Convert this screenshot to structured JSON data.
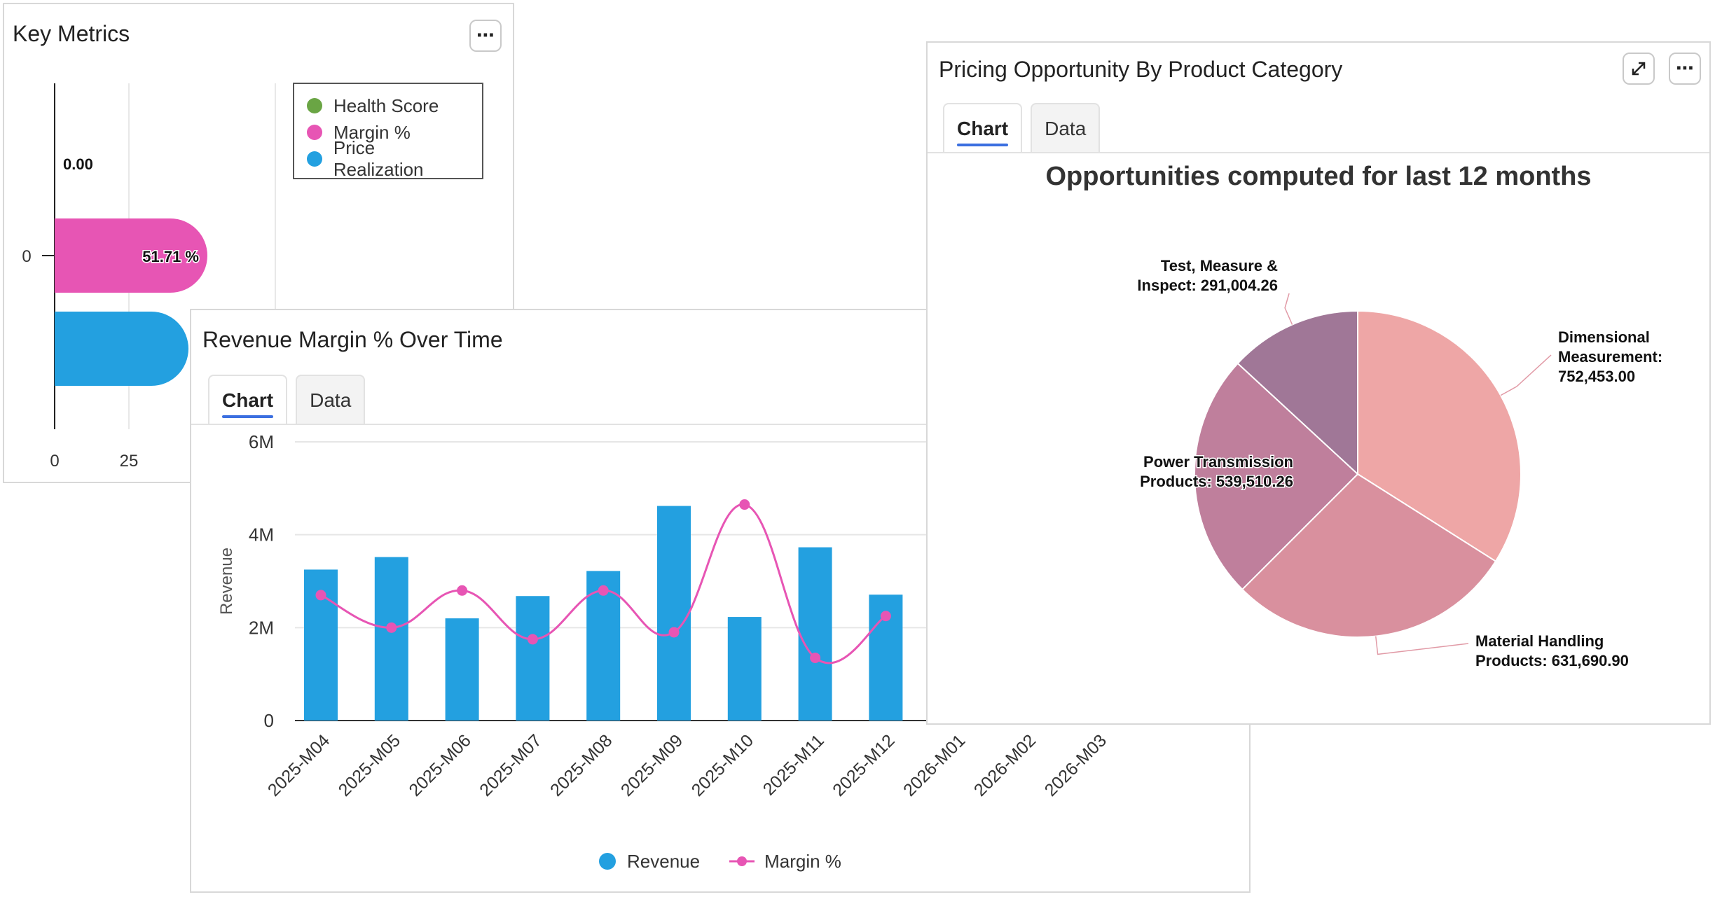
{
  "key_metrics": {
    "title": "Key Metrics",
    "menu_icon": "more-icon",
    "legend": [
      {
        "label": "Health Score",
        "color": "#6aa544"
      },
      {
        "label": "Margin %",
        "color": "#e755b4"
      },
      {
        "label": "Price Realization",
        "color": "#23a0e0"
      }
    ],
    "y_tick": "0",
    "x_ticks": [
      "0",
      "25"
    ],
    "value_labels": {
      "health": "0.00",
      "margin": "51.71 %"
    }
  },
  "revenue_panel": {
    "title": "Revenue Margin % Over Time",
    "tabs": [
      "Chart",
      "Data"
    ],
    "active_tab": "Chart",
    "legend": [
      {
        "label": "Revenue",
        "color": "#23a0e0"
      },
      {
        "label": "Margin %",
        "color": "#e755b4"
      }
    ]
  },
  "pricing_panel": {
    "title": "Pricing Opportunity By Product Category",
    "tabs": [
      "Chart",
      "Data"
    ],
    "active_tab": "Chart",
    "expand_icon": "expand-icon",
    "menu_icon": "more-icon",
    "chart_title": "Opportunities computed for last 12 months"
  },
  "chart_data": [
    {
      "type": "bar",
      "title": "Key Metrics",
      "orientation": "horizontal",
      "series": [
        {
          "name": "Health Score",
          "values": [
            0.0
          ]
        },
        {
          "name": "Margin %",
          "values": [
            51.71
          ]
        },
        {
          "name": "Price Realization",
          "values": [
            45
          ]
        }
      ],
      "categories": [
        "0"
      ],
      "xticks": [
        "0",
        "25"
      ]
    },
    {
      "type": "bar",
      "title": "Revenue Margin % Over Time",
      "ylabel": "Revenue",
      "ylim": [
        0,
        6000000
      ],
      "yticks": [
        "0",
        "2M",
        "4M",
        "6M"
      ],
      "categories": [
        "2025-M04",
        "2025-M05",
        "2025-M06",
        "2025-M07",
        "2025-M08",
        "2025-M09",
        "2025-M10",
        "2025-M11",
        "2025-M12",
        "2026-M01",
        "2026-M02",
        "2026-M03"
      ],
      "series": [
        {
          "name": "Revenue",
          "type": "bar",
          "values": [
            3250000,
            3520000,
            2200000,
            2680000,
            3220000,
            4620000,
            2230000,
            3730000,
            2710000,
            null,
            null,
            null
          ]
        },
        {
          "name": "Margin %",
          "type": "line",
          "values": [
            2700000,
            2000000,
            2800000,
            1750000,
            2800000,
            1900000,
            4650000,
            1350000,
            2250000,
            null,
            null,
            null
          ]
        }
      ]
    },
    {
      "type": "pie",
      "title": "Opportunities computed for last 12 months",
      "categories": [
        "Dimensional Measurement",
        "Material Handling Products",
        "Power Transmission Products",
        "Test, Measure & Inspect"
      ],
      "values": [
        752453.0,
        631690.9,
        539510.26,
        291004.26
      ],
      "labels": [
        [
          "Dimensional",
          "Measurement:",
          "752,453.00"
        ],
        [
          "Material Handling",
          "Products: 631,690.90"
        ],
        [
          "Power Transmission",
          "Products: 539,510.26"
        ],
        [
          "Test, Measure &",
          "Inspect: 291,004.26"
        ]
      ],
      "colors": [
        "#eea6a6",
        "#d9909e",
        "#bf7f9c",
        "#a07797"
      ]
    }
  ]
}
